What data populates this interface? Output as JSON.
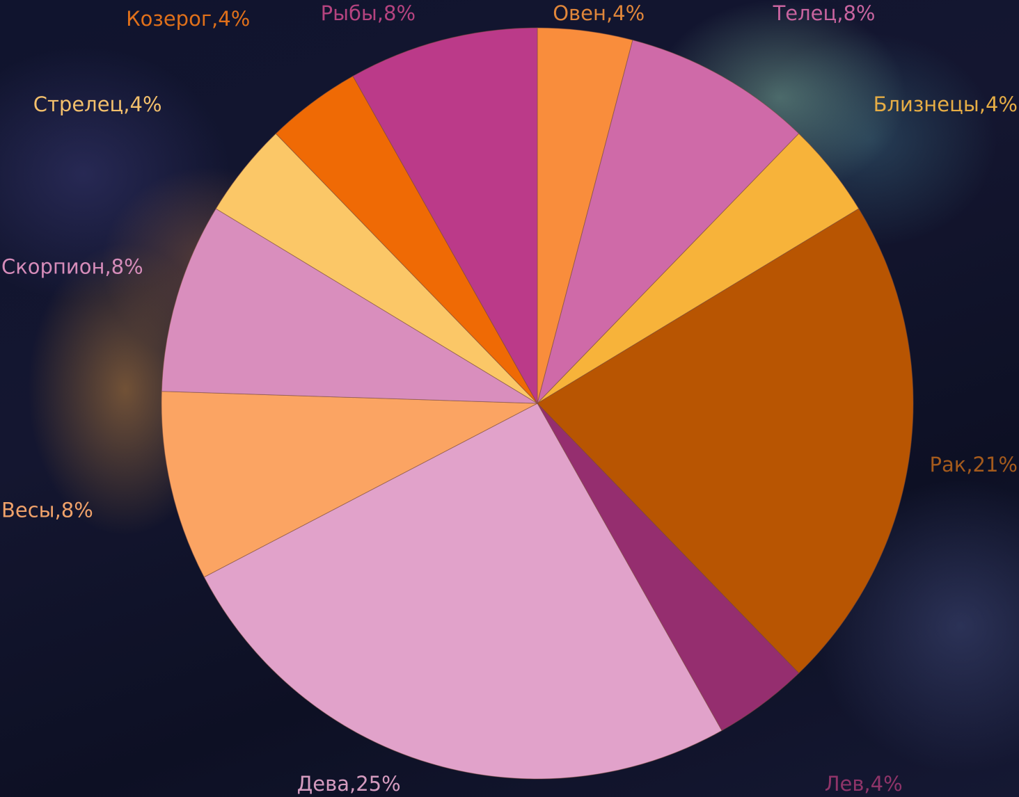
{
  "chart_data": {
    "type": "pie",
    "start": "12 o'clock",
    "direction": "clockwise",
    "slices": [
      {
        "label": "Овен",
        "value": 4,
        "display": "Овен,4%",
        "color": "#f98d3c",
        "label_color": "#e0863a"
      },
      {
        "label": "Телец",
        "value": 8,
        "display": "Телец,8%",
        "color": "#cf6aa8",
        "label_color": "#c8649f"
      },
      {
        "label": "Близнецы",
        "value": 4,
        "display": "Близнецы,4%",
        "color": "#f7b33a",
        "label_color": "#e6ad45"
      },
      {
        "label": "Рак",
        "value": 21,
        "display": "Рак,21%",
        "color": "#b85502",
        "label_color": "#a45a1c"
      },
      {
        "label": "Лев",
        "value": 4,
        "display": "Лев,4%",
        "color": "#952e6f",
        "label_color": "#8f3469"
      },
      {
        "label": "Дева",
        "value": 25,
        "display": "Дева,25%",
        "color": "#e1a2ca",
        "label_color": "#d59bbf"
      },
      {
        "label": "Весы",
        "value": 8,
        "display": "Весы,8%",
        "color": "#fba463",
        "label_color": "#f0a26a"
      },
      {
        "label": "Скорпион",
        "value": 8,
        "display": "Скорпион,8%",
        "color": "#d98ebd",
        "label_color": "#d68cba"
      },
      {
        "label": "Стрелец",
        "value": 4,
        "display": "Стрелец,4%",
        "color": "#fbc767",
        "label_color": "#f3c06c"
      },
      {
        "label": "Козерог",
        "value": 4,
        "display": "Козерог,4%",
        "color": "#ef6a05",
        "label_color": "#e0701a"
      },
      {
        "label": "Рыбы",
        "value": 8,
        "display": "Рыбы,8%",
        "color": "#bb3a89",
        "label_color": "#b5437f"
      }
    ]
  }
}
